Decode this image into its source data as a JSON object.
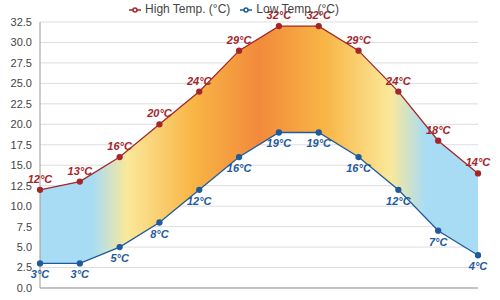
{
  "chart_data": {
    "type": "line",
    "categories": [
      null,
      null,
      null,
      null,
      null,
      null,
      null,
      null,
      null,
      null,
      null,
      null
    ],
    "series": [
      {
        "name": "Low Temp. (°C)",
        "color": "#1f5b9c",
        "marker": "circle",
        "values": [
          3,
          3,
          5,
          8,
          12,
          16,
          19,
          19,
          16,
          12,
          7,
          4
        ],
        "value_labels": [
          "3°C",
          "3°C",
          "5°C",
          "8°C",
          "12°C",
          "16°C",
          "19°C",
          "19°C",
          "16°C",
          "12°C",
          "7°C",
          "4°C"
        ]
      },
      {
        "name": "High Temp. (°C)",
        "color": "#a3262a",
        "marker": "circle",
        "values": [
          12,
          13,
          16,
          20,
          24,
          29,
          32,
          32,
          29,
          24,
          18,
          14
        ],
        "value_labels": [
          "12°C",
          "13°C",
          "16°C",
          "20°C",
          "24°C",
          "29°C",
          "32°C",
          "32°C",
          "29°C",
          "24°C",
          "18°C",
          "14°C"
        ]
      }
    ],
    "ylim": [
      0,
      32.5
    ],
    "yticks": [
      {
        "value": 0,
        "label": "0.0"
      },
      2.5,
      {
        "value": 5,
        "label": "5.0"
      },
      7.5,
      {
        "value": 10,
        "label": "10.0"
      },
      12.5,
      {
        "value": 15,
        "label": "15.0"
      },
      17.5,
      {
        "value": 20,
        "label": "20.0"
      },
      22.5,
      {
        "value": 25,
        "label": "25.0"
      },
      27.5,
      {
        "value": 30,
        "label": "30.0"
      },
      32.5
    ],
    "grid": true,
    "legend": "top",
    "data_labels": true,
    "tick_labels": "y"
  }
}
